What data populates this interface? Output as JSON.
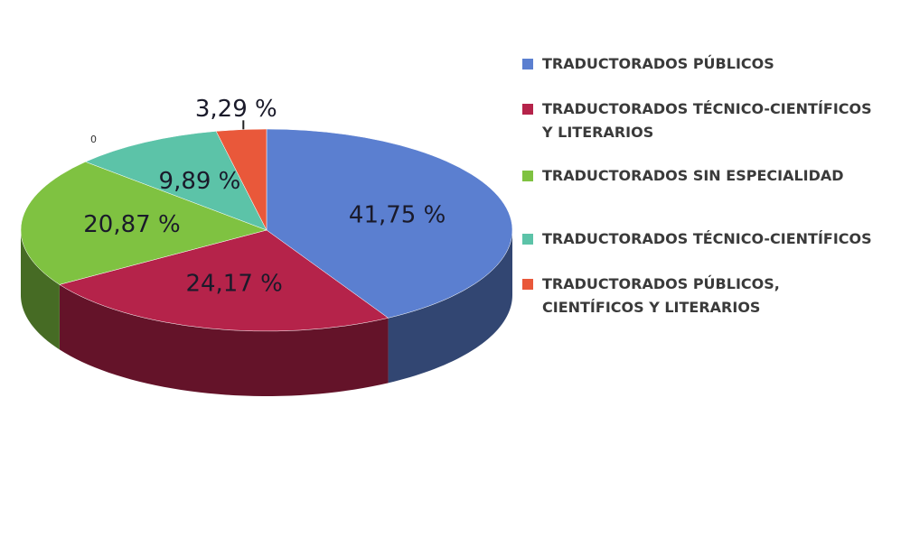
{
  "chart_data": {
    "type": "pie",
    "categories": [
      "TRADUCTORADOS PÚBLICOS",
      "TRADUCTORADOS TÉCNICO-CIENTÍFICOS Y LITERARIOS",
      "TRADUCTORADOS SIN ESPECIALIDAD",
      "TRADUCTORADOS TÉCNICO-CIENTÍFICOS",
      "TRADUCTORADOS PÚBLICOS, CIENTÍFICOS Y LITERARIOS"
    ],
    "values": [
      41.75,
      24.17,
      20.87,
      9.89,
      3.29
    ],
    "value_labels": [
      "41,75 %",
      "24,17 %",
      "20,87 %",
      "9,89 %",
      "3,29 %"
    ],
    "colors": [
      "#5b7fd0",
      "#b5234a",
      "#7fc241",
      "#5cc3a8",
      "#e9583a"
    ],
    "legend": "right",
    "annotation": "0"
  }
}
